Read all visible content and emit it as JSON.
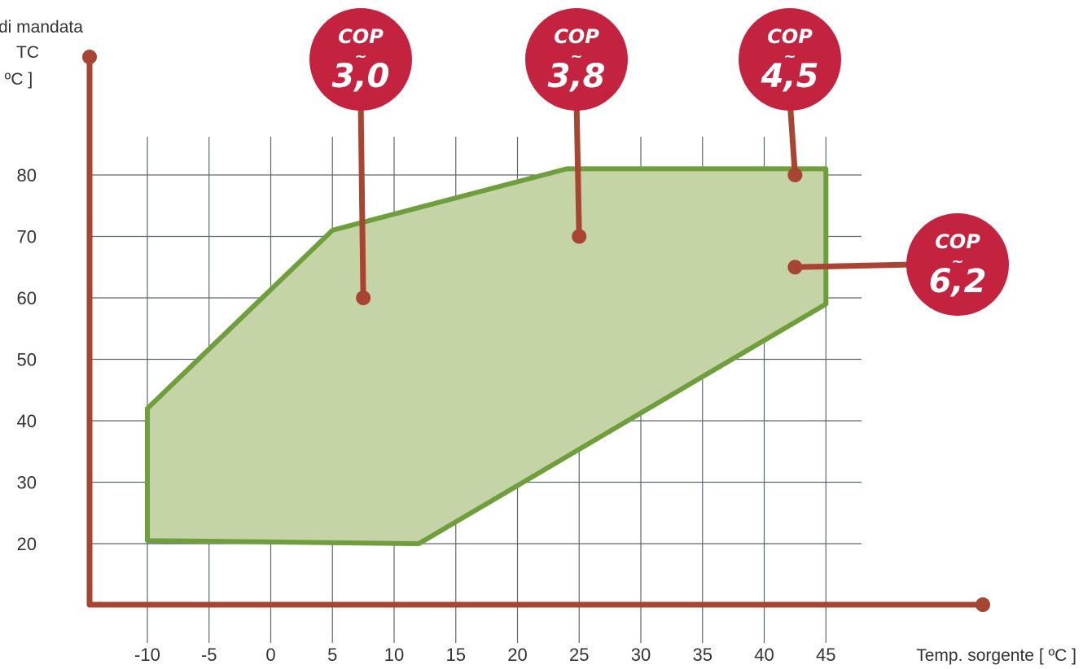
{
  "chart_data": {
    "type": "area",
    "xlabel": "Temp. sorgente [ ºC ]",
    "ylabel_lines": [
      "di mandata",
      "TC",
      "[ ºC ]"
    ],
    "x_ticks": [
      -10,
      -5,
      0,
      5,
      10,
      15,
      20,
      25,
      30,
      35,
      40,
      45
    ],
    "x_tick_labels": [
      "-10",
      "-5",
      "0",
      "5",
      "10",
      "15",
      "20",
      "25",
      "30",
      "35",
      "40",
      "45"
    ],
    "y_ticks": [
      20,
      30,
      40,
      50,
      60,
      70,
      80
    ],
    "y_tick_labels": [
      "20",
      "30",
      "40",
      "50",
      "60",
      "70",
      "80"
    ],
    "xlim": [
      -15,
      47.5
    ],
    "ylim": [
      10,
      80
    ],
    "grid": true,
    "operating_envelope": {
      "x": [
        -10,
        5,
        24,
        45,
        45,
        12,
        -10
      ],
      "y": [
        42,
        71,
        81,
        81,
        59,
        20,
        20.5
      ]
    },
    "cop_points": [
      {
        "title": "COP",
        "tilde": "~",
        "value": "3,0",
        "x": 7.5,
        "y": 60
      },
      {
        "title": "COP",
        "tilde": "~",
        "value": "3,8",
        "x": 25,
        "y": 70
      },
      {
        "title": "COP",
        "tilde": "~",
        "value": "4,5",
        "x": 42.5,
        "y": 80
      },
      {
        "title": "COP",
        "tilde": "~",
        "value": "6,2",
        "x": 42.5,
        "y": 65
      }
    ],
    "colors": {
      "axis": "#a84432",
      "grid": "#5d6770",
      "envelope_stroke": "#6f9e3d",
      "envelope_fill": "#c5d4a6",
      "badge": "#c4233f"
    }
  }
}
